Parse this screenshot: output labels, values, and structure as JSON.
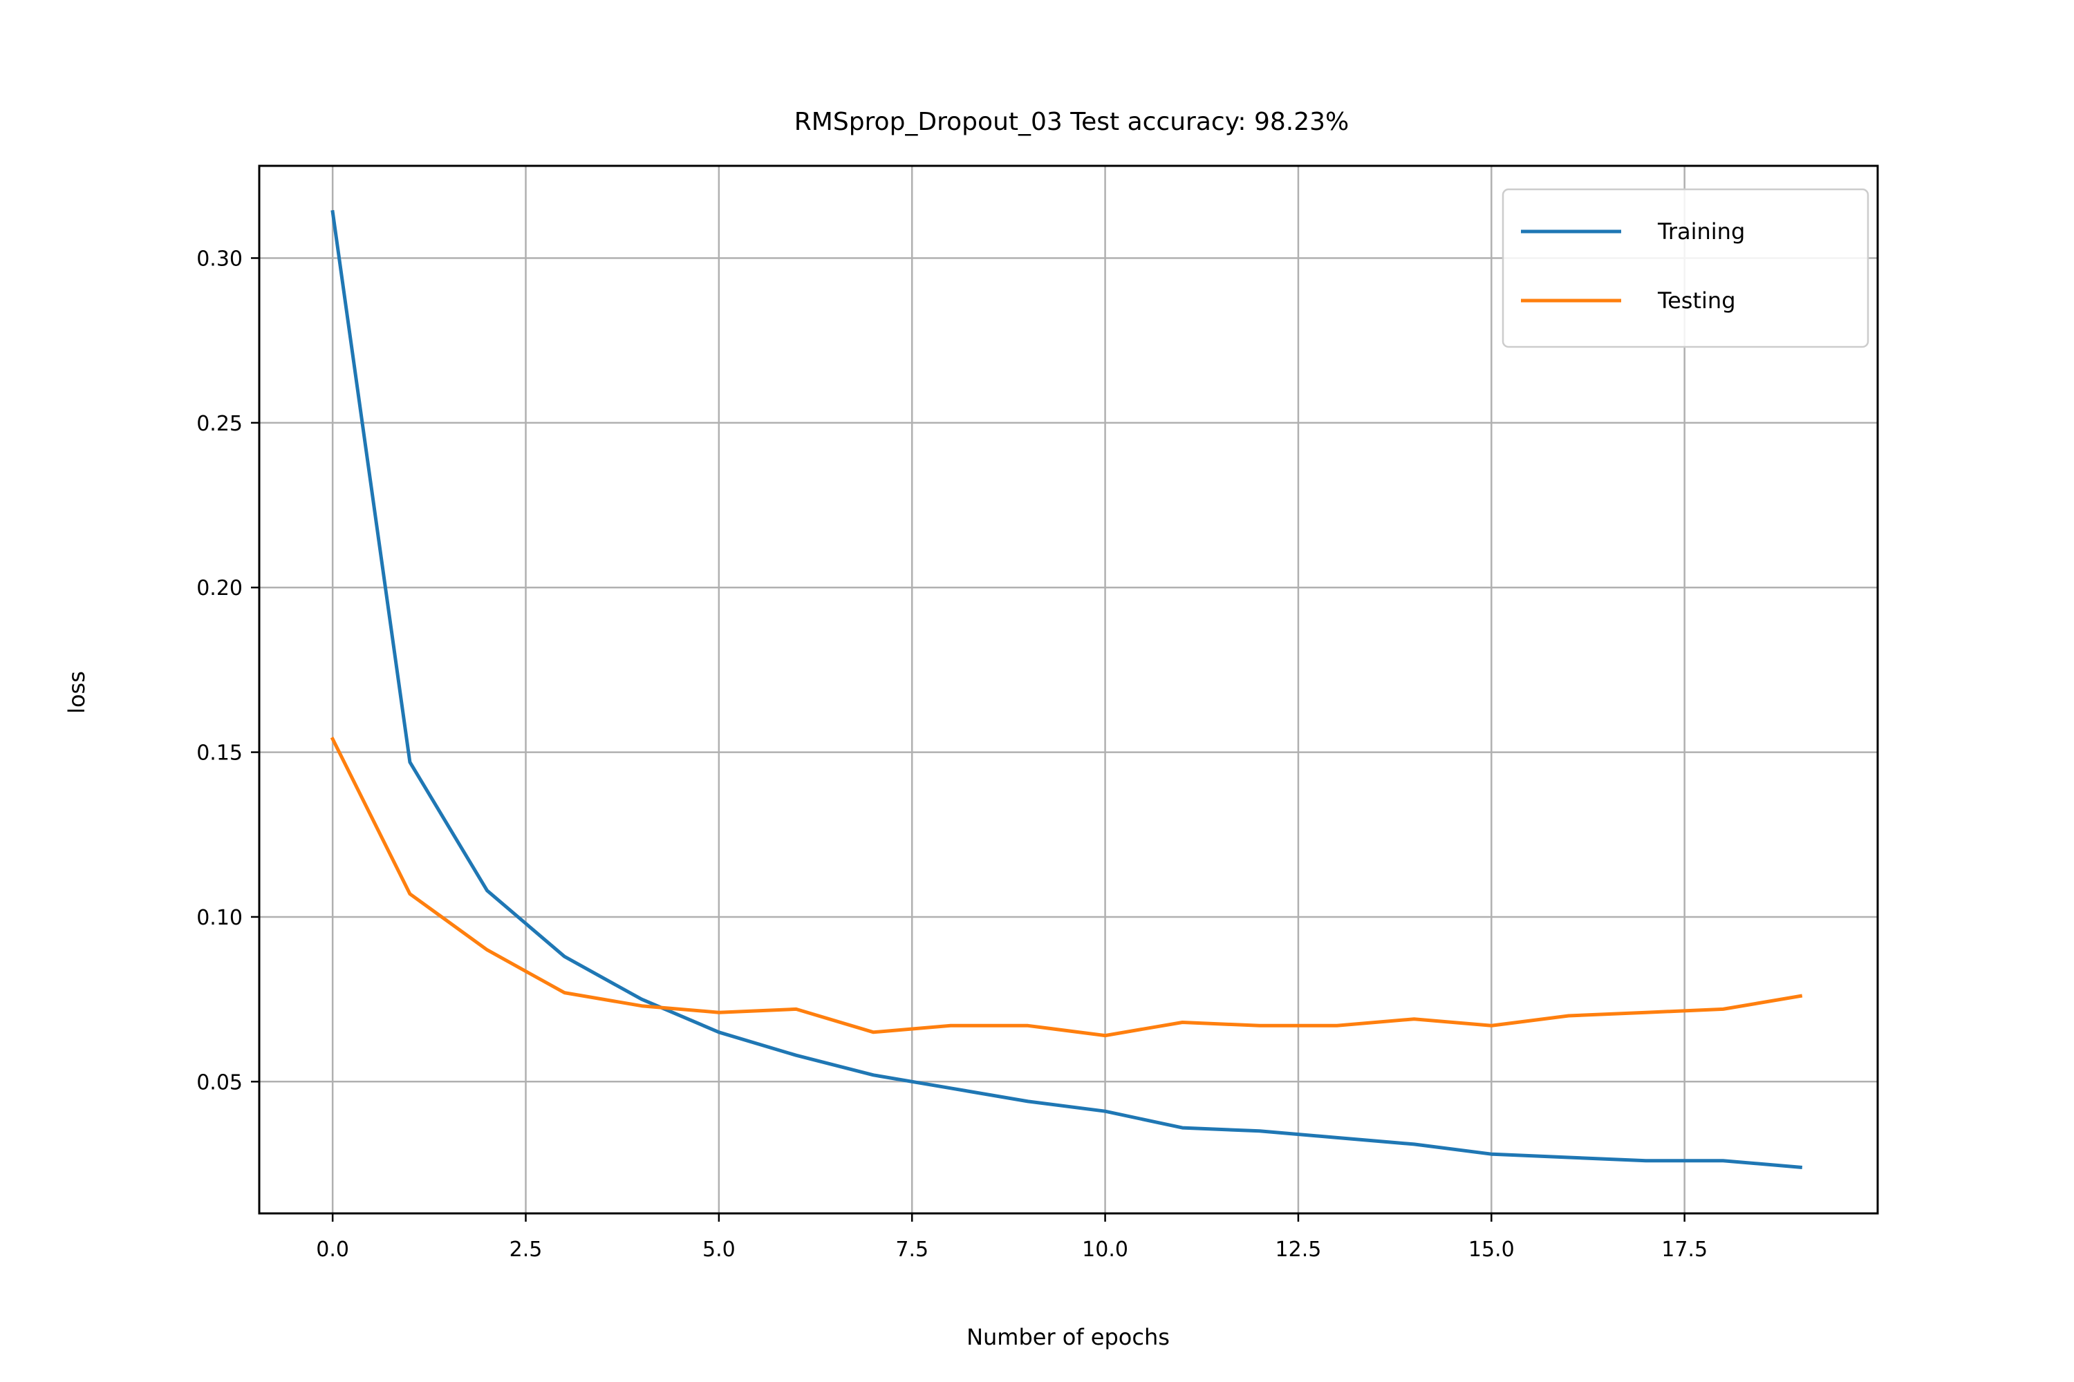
{
  "chart_data": {
    "type": "line",
    "title": "RMSprop_Dropout_03 Test accuracy: 98.23%",
    "xlabel": "Number of epochs",
    "ylabel": "loss",
    "xlim": [
      -0.95,
      20.0
    ],
    "ylim": [
      0.01,
      0.328
    ],
    "xticks": [
      0.0,
      2.5,
      5.0,
      7.5,
      10.0,
      12.5,
      15.0,
      17.5
    ],
    "xtick_labels": [
      "0.0",
      "2.5",
      "5.0",
      "7.5",
      "10.0",
      "12.5",
      "15.0",
      "17.5"
    ],
    "yticks": [
      0.05,
      0.1,
      0.15,
      0.2,
      0.25,
      0.3
    ],
    "ytick_labels": [
      "0.05",
      "0.10",
      "0.15",
      "0.20",
      "0.25",
      "0.30"
    ],
    "grid": true,
    "legend_position": "top-right",
    "x": [
      0,
      1,
      2,
      3,
      4,
      5,
      6,
      7,
      8,
      9,
      10,
      11,
      12,
      13,
      14,
      15,
      16,
      17,
      18,
      19
    ],
    "series": [
      {
        "name": "Training",
        "color": "#1f77b4",
        "values": [
          0.314,
          0.147,
          0.108,
          0.088,
          0.075,
          0.065,
          0.058,
          0.052,
          0.048,
          0.044,
          0.041,
          0.036,
          0.035,
          0.033,
          0.031,
          0.028,
          0.027,
          0.026,
          0.026,
          0.024
        ]
      },
      {
        "name": "Testing",
        "color": "#ff7f0e",
        "values": [
          0.154,
          0.107,
          0.09,
          0.077,
          0.073,
          0.071,
          0.072,
          0.065,
          0.067,
          0.067,
          0.064,
          0.068,
          0.067,
          0.067,
          0.069,
          0.067,
          0.07,
          0.071,
          0.072,
          0.076
        ]
      }
    ]
  }
}
